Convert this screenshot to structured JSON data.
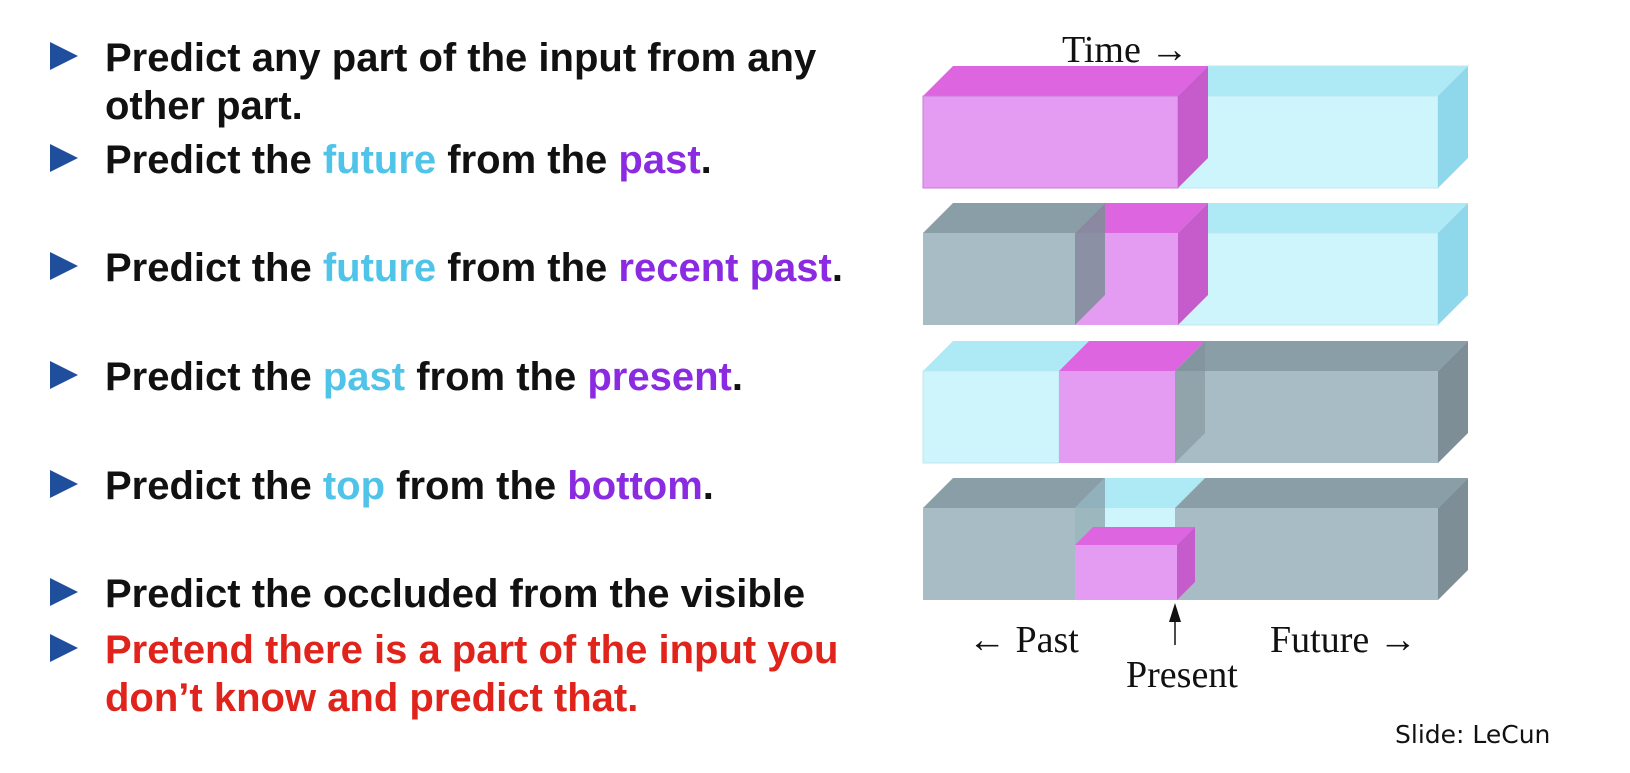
{
  "bullets": [
    {
      "parts": [
        {
          "text": "Predict any part of the input from any other part.",
          "color": "default"
        }
      ]
    },
    {
      "parts": [
        {
          "text": "Predict the ",
          "color": "default"
        },
        {
          "text": "future",
          "color": "cyan"
        },
        {
          "text": " from the ",
          "color": "default"
        },
        {
          "text": "past",
          "color": "purple"
        },
        {
          "text": ".",
          "color": "default"
        }
      ]
    },
    {
      "parts": [
        {
          "text": "Predict the ",
          "color": "default"
        },
        {
          "text": "future",
          "color": "cyan"
        },
        {
          "text": " from the ",
          "color": "default"
        },
        {
          "text": "recent past",
          "color": "purple"
        },
        {
          "text": ".",
          "color": "default"
        }
      ]
    },
    {
      "parts": [
        {
          "text": "Predict the ",
          "color": "default"
        },
        {
          "text": "past",
          "color": "cyan"
        },
        {
          "text": " from the ",
          "color": "default"
        },
        {
          "text": "present",
          "color": "purple"
        },
        {
          "text": ".",
          "color": "default"
        }
      ]
    },
    {
      "parts": [
        {
          "text": "Predict the ",
          "color": "default"
        },
        {
          "text": "top",
          "color": "cyan"
        },
        {
          "text": " from the ",
          "color": "default"
        },
        {
          "text": "bottom",
          "color": "purple"
        },
        {
          "text": ".",
          "color": "default"
        }
      ]
    },
    {
      "parts": [
        {
          "text": "Predict the occluded from the visible",
          "color": "default"
        }
      ]
    },
    {
      "parts": [
        {
          "text": "Pretend there is a part of the input you don’t know and predict that.",
          "color": "red"
        }
      ]
    }
  ],
  "diagram": {
    "time_label": "Time →",
    "past_label": "← Past",
    "present_label": "Present",
    "future_label": "Future →"
  },
  "credit": "Slide: LeCun",
  "colors": {
    "bullet_marker": "#1f4e9c",
    "text_default": "#111111",
    "highlight_cyan": "#4fc3e8",
    "highlight_purple": "#8a2be2",
    "highlight_red": "#e0231b",
    "block_cyan": "#cdf5fb",
    "block_magenta": "#e39cf2",
    "block_gray": "#a8bcc6"
  }
}
